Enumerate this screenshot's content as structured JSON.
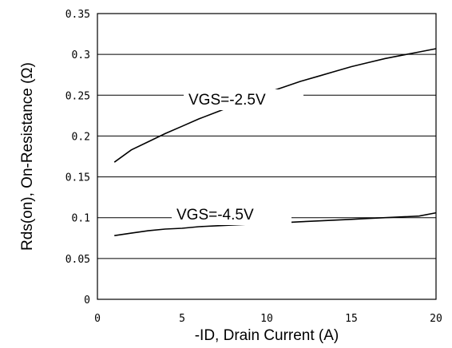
{
  "chart_data": {
    "type": "line",
    "title": "",
    "xlabel": "-ID, Drain Current (A)",
    "ylabel": "Rds(on), On-Resistance (Ω)",
    "xlim": [
      0,
      20
    ],
    "ylim": [
      0,
      0.35
    ],
    "x_ticks": [
      "0",
      "5",
      "10",
      "15",
      "20"
    ],
    "y_ticks": [
      "0",
      "0.05",
      "0.1",
      "0.15",
      "0.2",
      "0.25",
      "0.3",
      "0.35"
    ],
    "grid": "horizontal",
    "series": [
      {
        "name": "VGS=-2.5V",
        "x": [
          1,
          2,
          3,
          4,
          5,
          6,
          7,
          8,
          9,
          10,
          11,
          12,
          13,
          14,
          15,
          16,
          17,
          18,
          19,
          20
        ],
        "y": [
          0.168,
          0.183,
          0.193,
          0.203,
          0.212,
          0.221,
          0.229,
          0.237,
          0.245,
          0.253,
          0.26,
          0.267,
          0.273,
          0.279,
          0.285,
          0.29,
          0.295,
          0.299,
          0.303,
          0.307
        ]
      },
      {
        "name": "VGS=-4.5V",
        "x": [
          1,
          2,
          3,
          4,
          5,
          6,
          7,
          8,
          9,
          10,
          11,
          12,
          13,
          14,
          15,
          16,
          17,
          18,
          19,
          20
        ],
        "y": [
          0.078,
          0.081,
          0.084,
          0.086,
          0.087,
          0.089,
          0.09,
          0.091,
          0.092,
          0.093,
          0.094,
          0.095,
          0.096,
          0.097,
          0.098,
          0.099,
          0.1,
          0.101,
          0.102,
          0.106
        ]
      }
    ]
  }
}
